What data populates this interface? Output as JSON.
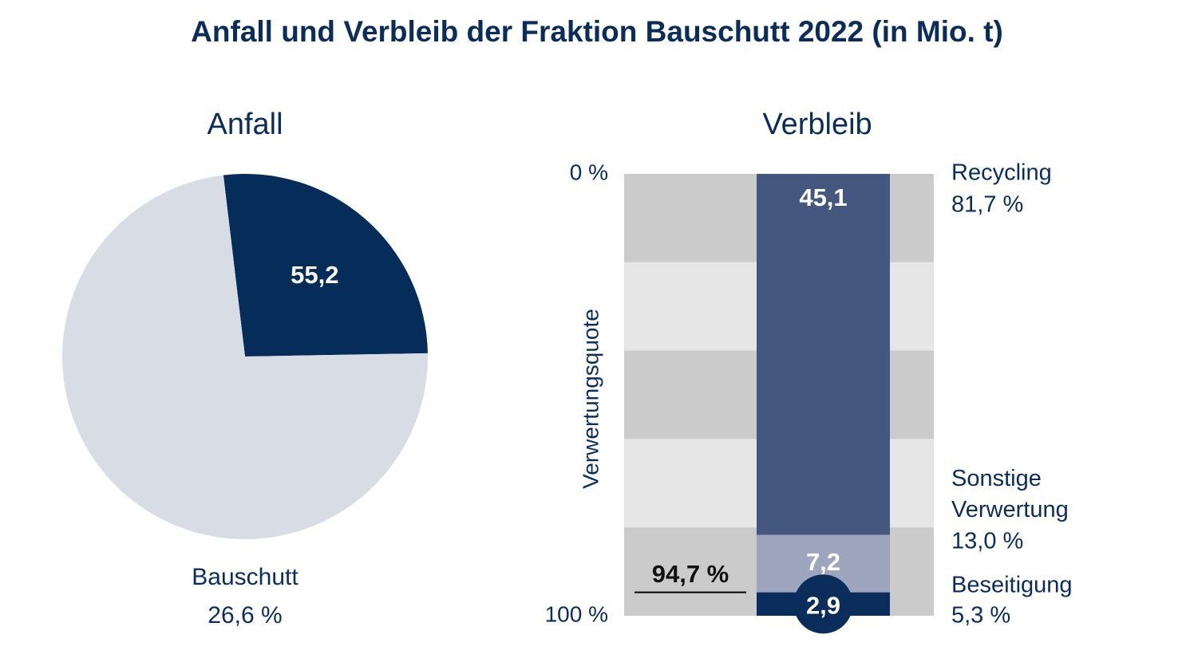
{
  "title": "Anfall und Verbleib der Fraktion Bauschutt 2022 (in Mio. t)",
  "chart_data": [
    {
      "type": "pie",
      "title": "Anfall",
      "categories": [
        "Bauschutt",
        null
      ],
      "values": [
        26.6,
        73.4
      ],
      "value_labels": [
        "26,6 %",
        null
      ],
      "amounts": [
        55.2,
        null
      ],
      "amount_labels": [
        "55,2",
        null
      ],
      "colors": [
        "#062d5a",
        "#d8dce5"
      ]
    },
    {
      "type": "stacked_bar",
      "title": "Verbleib",
      "y_label": "Verwertungsquote",
      "ylim": [
        0,
        100
      ],
      "yticks": [
        {
          "value": 0,
          "label": "0 %"
        },
        {
          "value": 100,
          "label": "100 %"
        }
      ],
      "series": [
        {
          "name": "Recycling",
          "color": "#44587f",
          "values": [
            81.7
          ],
          "value_labels": [
            "81,7 %"
          ],
          "amounts": [
            45.1
          ],
          "amount_labels": [
            "45,1"
          ]
        },
        {
          "name": "Sonstige Verwertung",
          "color": "#9ea5bf",
          "values": [
            13.0
          ],
          "value_labels": [
            "13,0 %"
          ],
          "amounts": [
            7.2
          ],
          "amount_labels": [
            "7,2"
          ]
        },
        {
          "name": "Beseitigung",
          "color": "#0b2d5b",
          "values": [
            5.3
          ],
          "value_labels": [
            "5,3 %"
          ],
          "amounts": [
            2.9
          ],
          "amount_labels": [
            "2,9"
          ]
        }
      ],
      "annotation": {
        "value": 94.7,
        "label": "94,7 %"
      }
    }
  ]
}
